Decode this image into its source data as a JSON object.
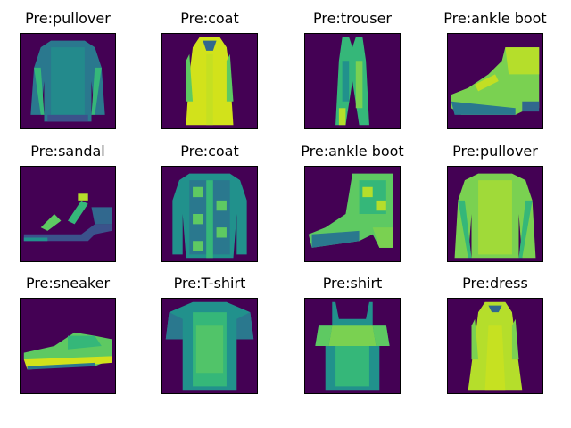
{
  "figure": {
    "colormap": "viridis",
    "background_color": "#440154",
    "panels": [
      {
        "title": "Pre:pullover",
        "item": "pullover",
        "icon": "pullover-image"
      },
      {
        "title": "Pre:coat",
        "item": "coat",
        "icon": "coat-image"
      },
      {
        "title": "Pre:trouser",
        "item": "trouser",
        "icon": "trouser-image"
      },
      {
        "title": "Pre:ankle boot",
        "item": "ankle-boot",
        "icon": "ankle-boot-image"
      },
      {
        "title": "Pre:sandal",
        "item": "sandal",
        "icon": "sandal-image"
      },
      {
        "title": "Pre:coat",
        "item": "coat-jacket",
        "icon": "coat-image"
      },
      {
        "title": "Pre:ankle boot",
        "item": "ankle-boot-2",
        "icon": "ankle-boot-image"
      },
      {
        "title": "Pre:pullover",
        "item": "pullover-2",
        "icon": "pullover-image"
      },
      {
        "title": "Pre:sneaker",
        "item": "sneaker",
        "icon": "sneaker-image"
      },
      {
        "title": "Pre:T-shirt",
        "item": "tshirt",
        "icon": "tshirt-image"
      },
      {
        "title": "Pre:shirt",
        "item": "shirt",
        "icon": "shirt-image"
      },
      {
        "title": "Pre:dress",
        "item": "dress",
        "icon": "dress-image"
      }
    ]
  }
}
